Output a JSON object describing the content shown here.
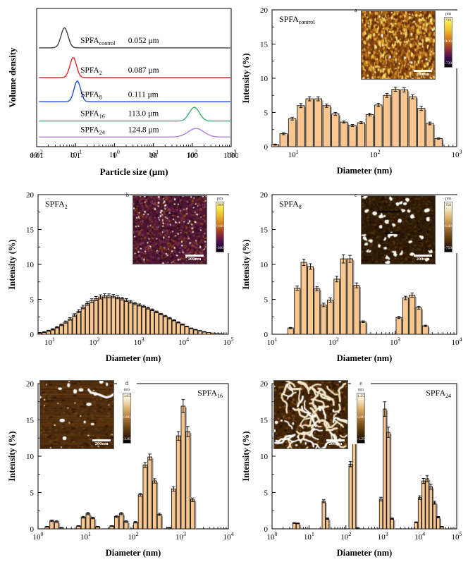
{
  "chart_data": [
    {
      "id": "particle-size-distribution",
      "type": "line",
      "xlabel": "Particle size (μm)",
      "ylabel": "Volume density",
      "xrange": [
        0.01,
        1000
      ],
      "xtick_labels": [
        "0.01",
        "0.1",
        "1",
        "10",
        "100",
        "1000"
      ],
      "series": [
        {
          "name": "SPFA",
          "sub": "control",
          "size_label": "0.052 μm",
          "color": "#3f3f3f",
          "peak_um": 0.052,
          "sigma_log": 0.09,
          "baseline_frac": 0.285,
          "peak_frac": 0.145
        },
        {
          "name": "SPFA",
          "sub": "2",
          "size_label": "0.087 μm",
          "color": "#e62525",
          "peak_um": 0.087,
          "sigma_log": 0.085,
          "baseline_frac": 0.5,
          "peak_frac": 0.145
        },
        {
          "name": "SPFA",
          "sub": "8",
          "size_label": "0.111 μm",
          "color": "#1d4fd6",
          "peak_um": 0.111,
          "sigma_log": 0.085,
          "baseline_frac": 0.675,
          "peak_frac": 0.15
        },
        {
          "name": "SPFA",
          "sub": "16",
          "size_label": "113.0 μm",
          "color": "#37b06b",
          "peak_um": 113.0,
          "sigma_log": 0.13,
          "baseline_frac": 0.815,
          "peak_frac": 0.1
        },
        {
          "name": "SPFA",
          "sub": "24",
          "size_label": "124.8 μm",
          "color": "#b07ce0",
          "peak_um": 124.8,
          "sigma_log": 0.2,
          "baseline_frac": 0.93,
          "peak_frac": 0.062
        }
      ]
    },
    {
      "id": "dls-spfa-control",
      "type": "bar",
      "label": {
        "name": "SPFA",
        "sub": "control"
      },
      "label_pos": "left",
      "xlabel": "Diameter (nm)",
      "ylabel": "Intensity (%)",
      "xrange": [
        5.5,
        1000
      ],
      "ylim": [
        0,
        20
      ],
      "yticks": [
        0,
        5,
        10,
        15,
        20
      ],
      "bar_halfwidth_log": 0.045,
      "x": [
        6,
        7.6,
        9.7,
        12.4,
        15.8,
        20.1,
        25.6,
        32.7,
        41.6,
        53,
        67.6,
        86.1,
        110,
        140,
        178,
        227,
        289,
        368,
        469,
        598
      ],
      "values": [
        0.3,
        1.9,
        4.1,
        6.0,
        7.0,
        7.0,
        6.0,
        4.8,
        3.6,
        3.1,
        3.5,
        4.7,
        6.1,
        7.5,
        8.4,
        8.3,
        7.3,
        5.6,
        3.4,
        1.2
      ],
      "errors": [
        0.08,
        0.15,
        0.2,
        0.3,
        0.3,
        0.3,
        0.25,
        0.2,
        0.15,
        0.15,
        0.15,
        0.2,
        0.25,
        0.3,
        0.3,
        0.3,
        0.3,
        0.3,
        0.2,
        0.1
      ],
      "inset": {
        "letter": "a",
        "letter_pos": "image",
        "unit": "pm",
        "max": "739",
        "mid": "0.00",
        "min": "-739",
        "scale_label": "200nm",
        "cmap": "gold",
        "texture": "a",
        "pos": "right"
      }
    },
    {
      "id": "dls-spfa-2",
      "type": "bar",
      "label": {
        "name": "SPFA",
        "sub": "2"
      },
      "label_pos": "left",
      "xlabel": "Diameter (nm)",
      "ylabel": "Intensity (%)",
      "xrange": [
        5.5,
        100000
      ],
      "ylim": [
        0,
        20
      ],
      "yticks": [
        0,
        5,
        10,
        15,
        20
      ],
      "bar_halfwidth_log": 0.042,
      "x": [
        6,
        7.5,
        9.4,
        11.7,
        14.6,
        18.3,
        22.9,
        28.6,
        35.8,
        44.7,
        55.9,
        69.9,
        87.3,
        109,
        137,
        171,
        213,
        267,
        333,
        417,
        521,
        651,
        814,
        1017,
        1272,
        1590,
        1987,
        2484,
        3105,
        3881,
        4851,
        6064,
        7580,
        9475,
        11844,
        14805,
        18506,
        23133,
        28916,
        36145,
        45181,
        56476,
        70595
      ],
      "values": [
        0.2,
        0.3,
        0.5,
        0.7,
        1.0,
        1.35,
        1.75,
        2.2,
        2.75,
        3.3,
        3.9,
        4.4,
        4.8,
        5.1,
        5.35,
        5.5,
        5.5,
        5.45,
        5.3,
        5.1,
        4.9,
        4.65,
        4.4,
        4.2,
        4.0,
        3.75,
        3.5,
        3.2,
        2.9,
        2.6,
        2.3,
        2.0,
        1.7,
        1.4,
        1.1,
        0.85,
        0.65,
        0.5,
        0.35,
        0.25,
        0.18,
        0.12,
        0.08
      ],
      "errors": [
        0.05,
        0.05,
        0.08,
        0.1,
        0.1,
        0.12,
        0.15,
        0.18,
        0.2,
        0.22,
        0.25,
        0.25,
        0.28,
        0.3,
        0.3,
        0.3,
        0.28,
        0.25,
        0.22,
        0.2,
        0.2,
        0.18,
        0.18,
        0.15,
        0.15,
        0.15,
        0.12,
        0.12,
        0.1,
        0.1,
        0.1,
        0.08,
        0.08,
        0.08,
        0.05,
        0.05,
        0.05,
        0.04,
        0.04,
        0.03,
        0.03,
        0.02,
        0.02
      ],
      "inset": {
        "letter": "b",
        "letter_pos": "image",
        "unit": "pm",
        "max": "300",
        "mid": "0.00",
        "min": "-300",
        "scale_label": "200nm",
        "cmap": "gold",
        "texture": "b",
        "pos": "right"
      }
    },
    {
      "id": "dls-spfa-8",
      "type": "bar",
      "label": {
        "name": "SPFA",
        "sub": "8"
      },
      "label_pos": "left",
      "xlabel": "Diameter (nm)",
      "ylabel": "Intensity (%)",
      "xrange": [
        10,
        10000
      ],
      "ylim": [
        0,
        20
      ],
      "yticks": [
        0,
        5,
        10,
        15,
        20
      ],
      "bar_halfwidth_log": 0.046,
      "x": [
        20,
        25.6,
        32.8,
        42,
        53.7,
        68.8,
        88,
        112.6,
        144,
        184.5,
        236,
        302,
        1150,
        1472,
        1884,
        2412,
        3087
      ],
      "values": [
        0.9,
        6.6,
        10.3,
        9.7,
        6.5,
        4.2,
        4.9,
        7.9,
        10.8,
        10.8,
        7.0,
        1.8,
        2.4,
        5.2,
        5.6,
        3.8,
        1.2
      ],
      "errors": [
        0.08,
        0.3,
        0.45,
        0.4,
        0.3,
        0.25,
        0.3,
        0.4,
        0.6,
        0.5,
        0.35,
        0.12,
        0.15,
        0.25,
        0.3,
        0.2,
        0.1
      ],
      "inset": {
        "letter": "c",
        "letter_pos": "image",
        "unit": "pm",
        "max": "750",
        "mid": "0.00",
        "min": "-750",
        "scale_label": "200nm",
        "cmap": "sepia",
        "texture": "c",
        "pos": "right"
      }
    },
    {
      "id": "dls-spfa-16",
      "type": "bar",
      "label": {
        "name": "SPFA",
        "sub": "16"
      },
      "label_pos": "right",
      "xlabel": "Diameter (nm)",
      "ylabel": "Intensity (%)",
      "xrange": [
        1,
        10000
      ],
      "ylim": [
        0,
        20
      ],
      "yticks": [
        0,
        5,
        10,
        15,
        20
      ],
      "bar_halfwidth_log": 0.043,
      "x": [
        1.55,
        1.95,
        2.45,
        3.1,
        7.1,
        8.9,
        11.2,
        14.1,
        17.8,
        35.5,
        44.7,
        56.2,
        70.8,
        112,
        141,
        178,
        224,
        282,
        355,
        562,
        708,
        891,
        1122,
        1413,
        1778
      ],
      "values": [
        0.3,
        1.1,
        1.0,
        0.15,
        0.4,
        1.6,
        2.1,
        1.5,
        0.3,
        0.4,
        1.7,
        2.1,
        1.0,
        0.9,
        4.7,
        8.8,
        9.9,
        6.6,
        2.0,
        0.15,
        5.5,
        12.8,
        16.9,
        13.4,
        4.0
      ],
      "errors": [
        0.05,
        0.1,
        0.1,
        0.04,
        0.05,
        0.12,
        0.15,
        0.12,
        0.05,
        0.05,
        0.12,
        0.15,
        0.1,
        0.1,
        0.2,
        0.35,
        0.4,
        0.3,
        0.15,
        0.04,
        0.3,
        0.6,
        0.9,
        0.7,
        0.25
      ],
      "inset": {
        "letter": "d",
        "letter_pos": "bar",
        "unit": "nm",
        "max": "3.85",
        "mid": "0.00",
        "min": "-3.85",
        "scale_label": "200nm",
        "cmap": "sepia",
        "texture": "d",
        "pos": "left"
      }
    },
    {
      "id": "dls-spfa-24",
      "type": "bar",
      "label": {
        "name": "SPFA",
        "sub": "24"
      },
      "label_pos": "right",
      "xlabel": "Diameter (nm)",
      "ylabel": "Intensity (%)",
      "xrange": [
        1,
        100000
      ],
      "ylim": [
        0,
        20
      ],
      "yticks": [
        0,
        5,
        10,
        15,
        20
      ],
      "bar_halfwidth_log": 0.043,
      "x": [
        4.0,
        5.0,
        25,
        31.5,
        133,
        167,
        210,
        891,
        1122,
        1413,
        1778,
        7943,
        10000,
        12589,
        15849,
        19953,
        25119,
        31623,
        39811
      ],
      "values": [
        0.8,
        0.75,
        3.8,
        1.4,
        8.9,
        18.5,
        0.12,
        4.1,
        16.5,
        13.3,
        1.4,
        0.9,
        4.3,
        6.6,
        6.9,
        5.8,
        3.6,
        1.6,
        0.3
      ],
      "errors": [
        0.06,
        0.06,
        0.2,
        0.1,
        0.35,
        1.0,
        0.04,
        0.25,
        1.0,
        0.7,
        0.1,
        0.06,
        0.25,
        0.35,
        0.4,
        0.35,
        0.2,
        0.1,
        0.04
      ],
      "inset": {
        "letter": "e",
        "letter_pos": "bar",
        "unit": "nm",
        "max": "1.25",
        "mid": "0.00",
        "min": "-1.25",
        "scale_label": "200nm",
        "cmap": "sepia",
        "texture": "e",
        "pos": "left"
      }
    }
  ],
  "style": {
    "bar_fill": "#f8c68e",
    "bar_stroke": "#1a1a1a",
    "bar_shadow": "#9b9b9b",
    "axis_color": "#000000"
  }
}
